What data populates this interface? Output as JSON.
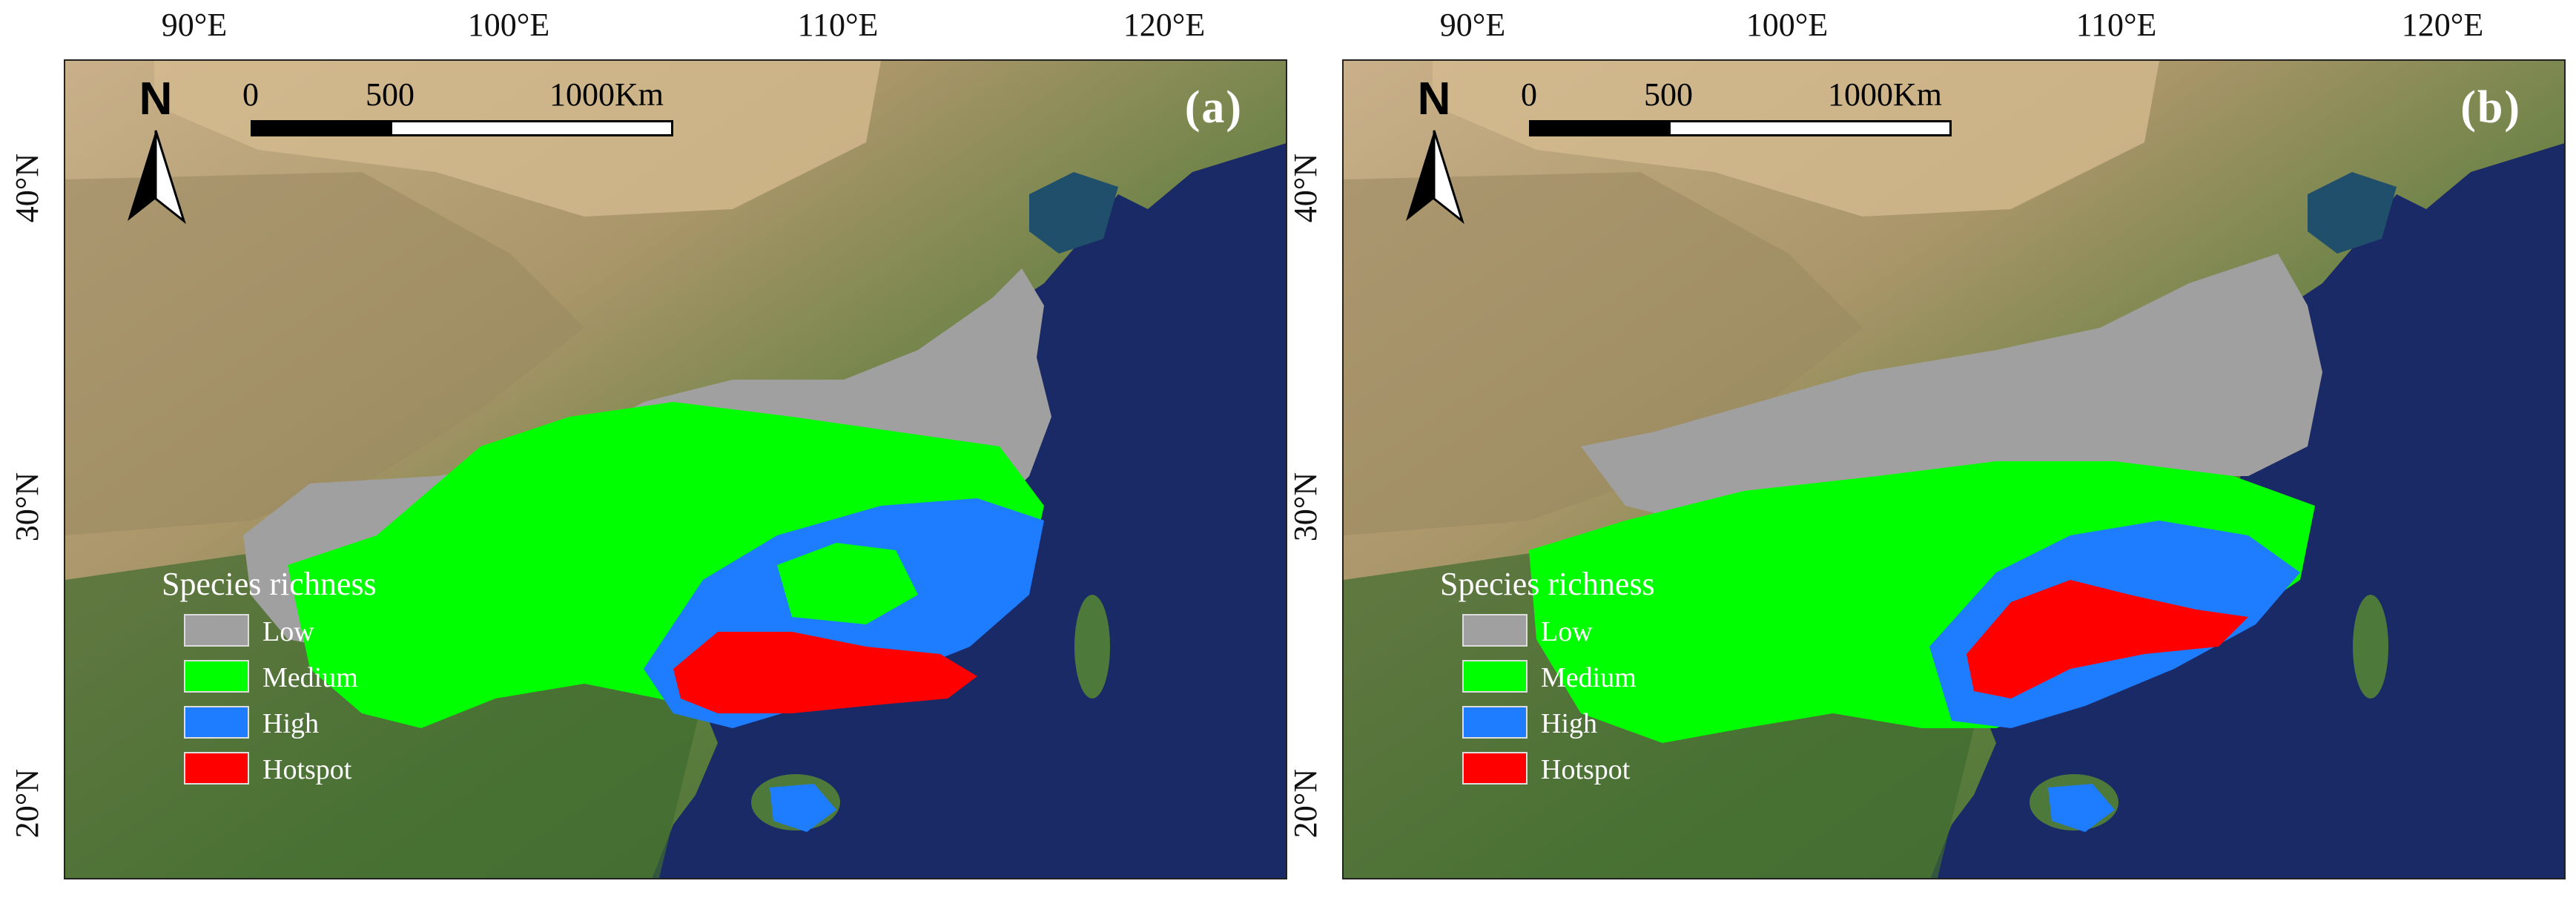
{
  "axes": {
    "longitude_ticks": [
      "90°E",
      "100°E",
      "110°E",
      "120°E"
    ],
    "latitude_ticks": [
      "40°N",
      "30°N",
      "20°N"
    ]
  },
  "north_arrow": {
    "label": "N",
    "icon": "north-arrow-icon"
  },
  "scale_bar": {
    "labels": [
      "0",
      "500",
      "1000Km"
    ]
  },
  "legend": {
    "title": "Species richness",
    "items": [
      {
        "label": "Low",
        "color": "#a0a0a0"
      },
      {
        "label": "Medium",
        "color": "#00ff00"
      },
      {
        "label": "High",
        "color": "#1e7cff"
      },
      {
        "label": "Hotspot",
        "color": "#ff0000"
      }
    ]
  },
  "panels": [
    {
      "label": "(a)"
    },
    {
      "label": "(b)"
    }
  ],
  "colors": {
    "ocean": "#1a2a66",
    "desert": "#c8ad84",
    "vegetation": "#4d7a3a"
  }
}
